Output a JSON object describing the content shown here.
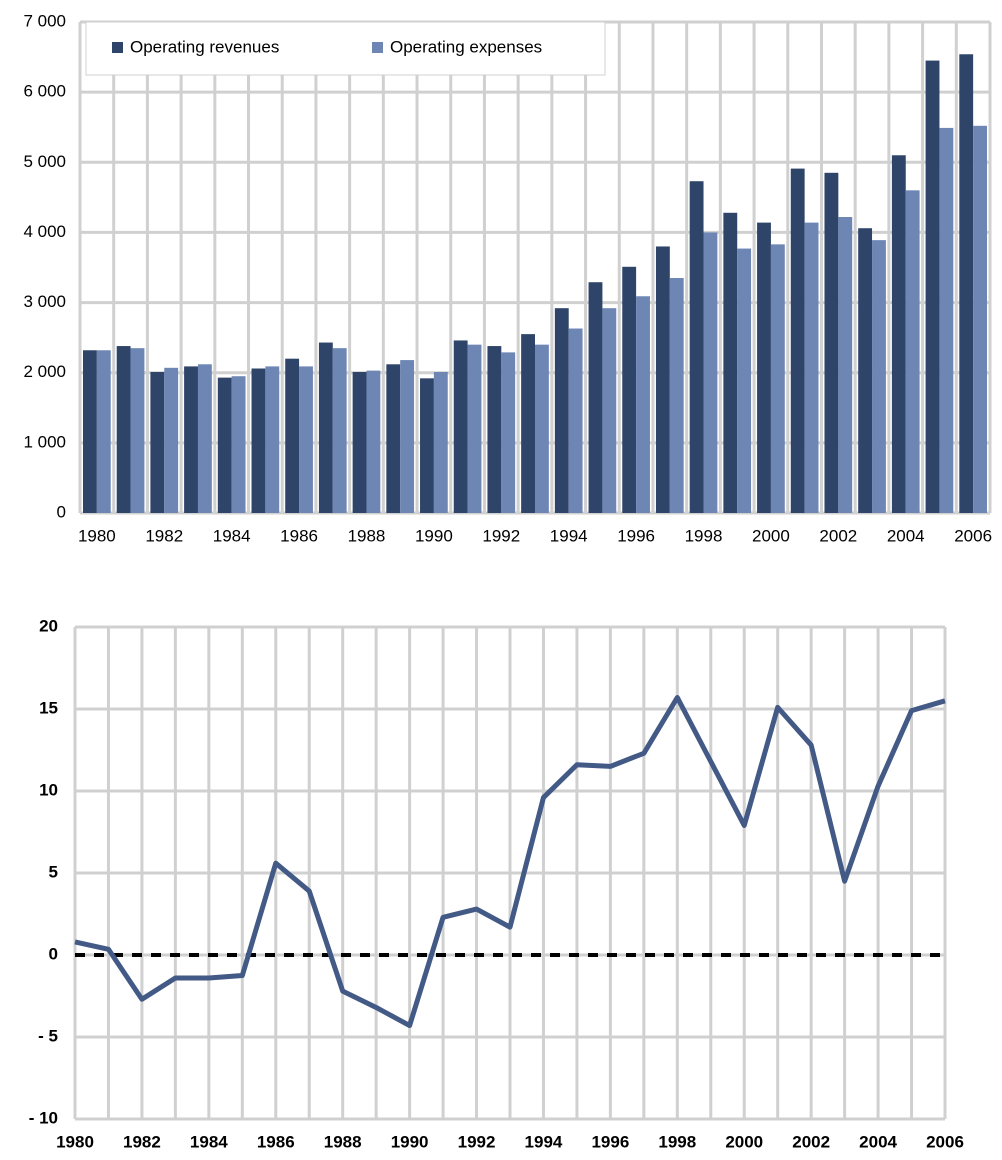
{
  "chart_data": [
    {
      "type": "bar",
      "categories": [
        "1980",
        null,
        "1982",
        null,
        "1984",
        null,
        "1986",
        null,
        "1988",
        null,
        "1990",
        null,
        "1992",
        null,
        "1994",
        null,
        "1996",
        null,
        "1998",
        null,
        "2000",
        null,
        "2002",
        null,
        "2004",
        null,
        "2006"
      ],
      "series": [
        {
          "name": "Operating revenues",
          "color": "#2e4468",
          "values": [
            2320,
            2380,
            2010,
            2090,
            1930,
            2060,
            2200,
            2430,
            2010,
            2120,
            1920,
            2460,
            2380,
            2550,
            2920,
            3290,
            3510,
            3800,
            4730,
            4280,
            4140,
            4910,
            4850,
            4060,
            5100,
            6450,
            6540
          ]
        },
        {
          "name": "Operating expenses",
          "color": "#6d86b4",
          "values": [
            2320,
            2350,
            2070,
            2120,
            1950,
            2090,
            2090,
            2350,
            2030,
            2180,
            2010,
            2400,
            2290,
            2400,
            2630,
            2920,
            3090,
            3350,
            4000,
            3770,
            3830,
            4140,
            4220,
            3890,
            4600,
            5490,
            5520
          ]
        }
      ],
      "ylim": [
        0,
        7000
      ],
      "yticks": [
        0,
        {
          "value": 1000,
          "label": "1 000"
        },
        {
          "value": 2000,
          "label": "2 000"
        },
        {
          "value": 3000,
          "label": "3 000"
        },
        {
          "value": 4000,
          "label": "4 000"
        },
        {
          "value": 5000,
          "label": "5 000"
        },
        {
          "value": 6000,
          "label": "6 000"
        },
        {
          "value": 7000,
          "label": "7 000"
        }
      ],
      "grid": true,
      "legend": "top-left"
    },
    {
      "type": "line",
      "x": [
        1980,
        1981,
        1982,
        1983,
        1984,
        1985,
        1986,
        1987,
        1988,
        1989,
        1990,
        1991,
        1992,
        1993,
        1994,
        1995,
        1996,
        1997,
        1998,
        1999,
        2000,
        2001,
        2002,
        2003,
        2004,
        2005,
        2006
      ],
      "series": [
        {
          "color": "#435a86",
          "values": [
            0.8,
            0.35,
            -2.7,
            -1.4,
            -1.4,
            -1.25,
            5.6,
            3.9,
            -2.2,
            -3.2,
            -4.3,
            2.3,
            2.8,
            1.7,
            9.6,
            11.6,
            11.5,
            12.3,
            15.7,
            11.8,
            7.9,
            15.1,
            12.8,
            4.5,
            10.3,
            14.9,
            15.5
          ]
        }
      ],
      "xlim": [
        1980,
        2006
      ],
      "xticks": [
        1980,
        1982,
        1984,
        1986,
        1988,
        1990,
        1992,
        1994,
        1996,
        1998,
        2000,
        2002,
        2004,
        2006
      ],
      "ylim": [
        -10,
        20
      ],
      "yticks": [
        {
          "value": -10,
          "label": "- 10"
        },
        {
          "value": -5,
          "label": "- 5"
        },
        0,
        5,
        10,
        15,
        20
      ],
      "grid": true,
      "zero_line": true
    }
  ]
}
